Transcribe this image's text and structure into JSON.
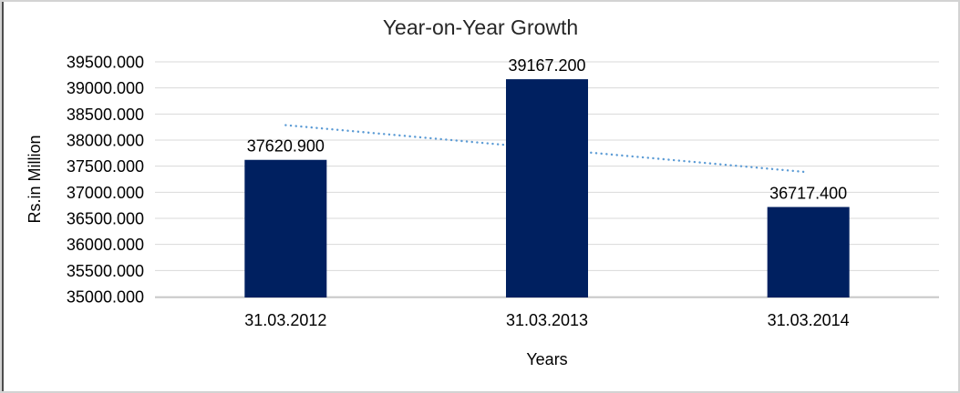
{
  "chart_data": {
    "type": "bar",
    "title": "Year-on-Year Growth",
    "xlabel": "Years",
    "ylabel": "Rs.in Million",
    "categories": [
      "31.03.2012",
      "31.03.2013",
      "31.03.2014"
    ],
    "values": [
      37620.9,
      39167.2,
      36717.4
    ],
    "data_labels": [
      "37620.900",
      "39167.200",
      "36717.400"
    ],
    "ylim": [
      35000,
      39500
    ],
    "ytick_step": 500,
    "ytick_format_decimals": 3,
    "grid": true,
    "legend": "none",
    "trendline": {
      "type": "linear",
      "style": "dotted",
      "start_value": 38286.9,
      "end_value": 37383.4
    },
    "colors": {
      "bar": "#002060",
      "trendline": "#5B9BD5",
      "gridline": "#D9D9D9",
      "axis_line": "#BFBFBF",
      "text": "#000000",
      "frame_border": "#D3D3D3"
    }
  }
}
